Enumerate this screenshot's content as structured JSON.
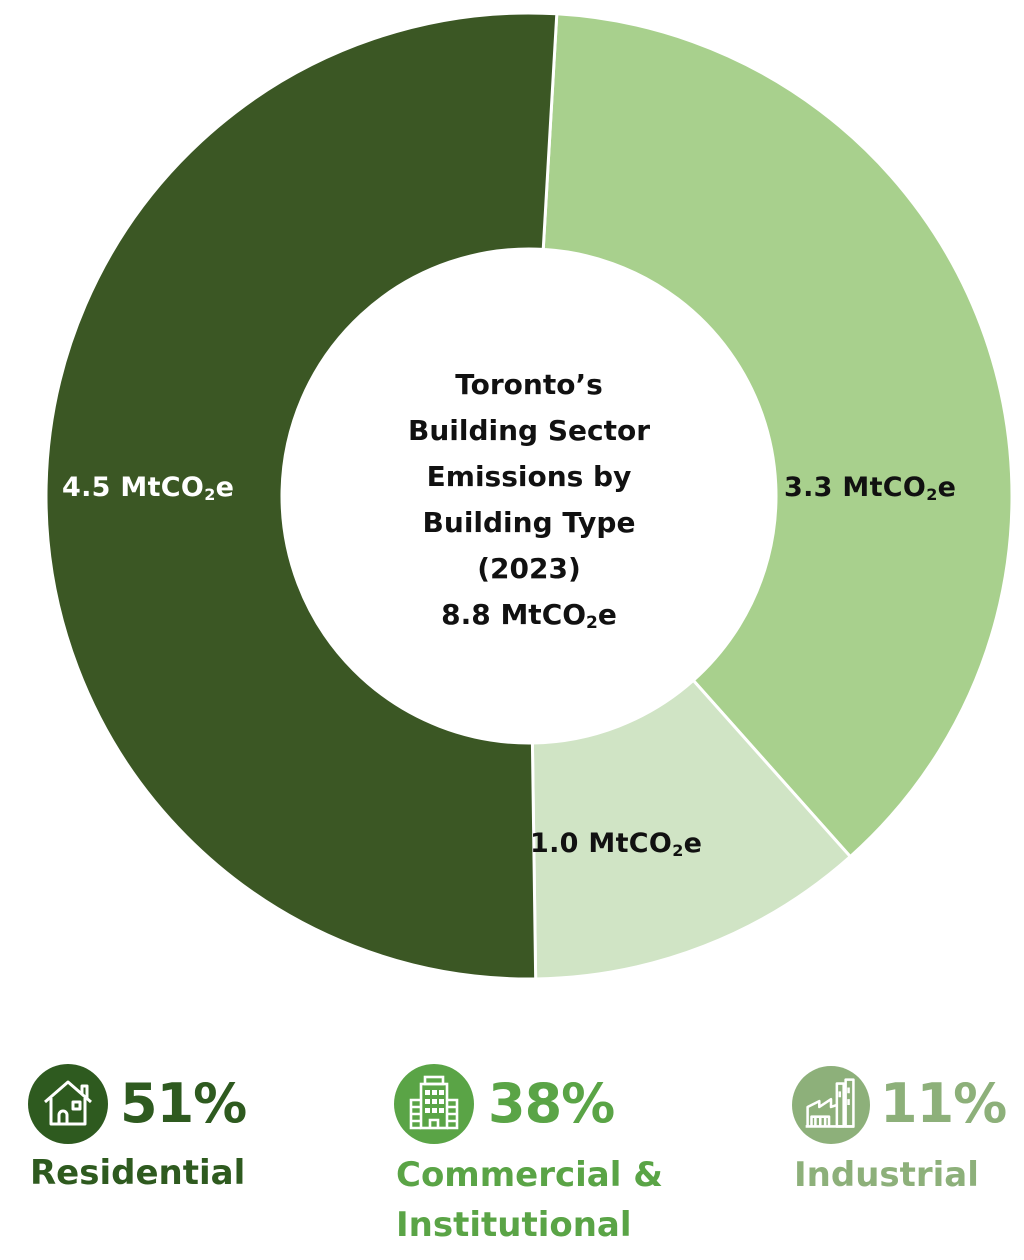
{
  "chart_data": {
    "type": "pie",
    "variant": "donut",
    "title": "Toronto's Building Sector Emissions by Building Type (2023)",
    "total": "8.8 MtCO2e",
    "unit": "MtCO2e",
    "categories": [
      "Residential",
      "Commercial & Institutional",
      "Industrial"
    ],
    "values": [
      4.5,
      3.3,
      1.0
    ],
    "percentages": [
      51,
      38,
      11
    ],
    "colors": [
      "#3b5724",
      "#a8d08d",
      "#d0e4c5"
    ],
    "value_labels": [
      "4.5 MtCO2e",
      "3.3 MtCO2e",
      "1.0 MtCO2e"
    ],
    "legend_position": "bottom"
  },
  "center": {
    "line1": "Toronto’s",
    "line2": "Building Sector",
    "line3": "Emissions by",
    "line4": "Building Type",
    "line5": "(2023)",
    "total_value": "8.8 MtCO",
    "total_sub": "2",
    "total_suffix": "e"
  },
  "segments": [
    {
      "value": "4.5 MtCO",
      "sub": "2",
      "suffix": "e",
      "text_color": "#ffffff"
    },
    {
      "value": "3.3 MtCO",
      "sub": "2",
      "suffix": "e",
      "text_color": "#111111"
    },
    {
      "value": "1.0 MtCO",
      "sub": "2",
      "suffix": "e",
      "text_color": "#111111"
    }
  ],
  "legend": [
    {
      "percent": "51%",
      "name": "Residential",
      "icon": "house-icon",
      "color": "#2e5a1f",
      "icon_bg": "#2e5a1f"
    },
    {
      "percent": "38%",
      "name_line1": "Commercial &",
      "name_line2": "Institutional",
      "icon": "office-building-icon",
      "color": "#5aa446",
      "icon_bg": "#5aa446"
    },
    {
      "percent": "11%",
      "name": "Industrial",
      "icon": "factory-icon",
      "color": "#8db07a",
      "icon_bg": "#8db07a"
    }
  ]
}
